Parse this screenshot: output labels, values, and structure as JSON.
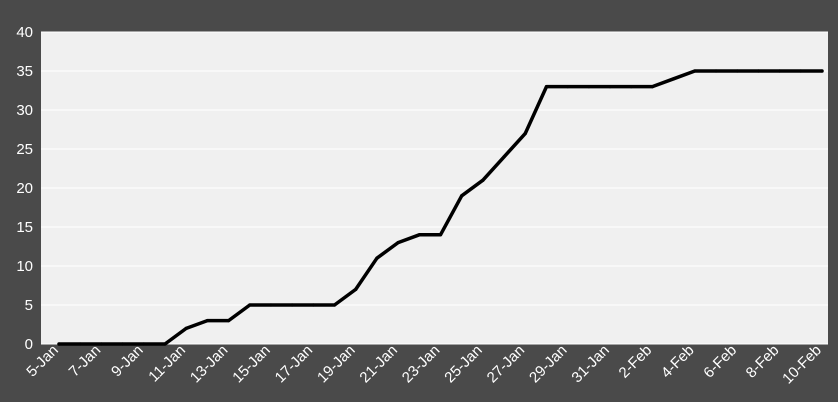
{
  "chart_data": {
    "type": "line",
    "title": "",
    "xlabel": "",
    "ylabel": "",
    "ylim": [
      0,
      40
    ],
    "yticks": [
      0,
      5,
      10,
      15,
      20,
      25,
      30,
      35,
      40
    ],
    "grid": true,
    "legend": "none",
    "x": [
      "5-Jan",
      "6-Jan",
      "7-Jan",
      "8-Jan",
      "9-Jan",
      "10-Jan",
      "11-Jan",
      "12-Jan",
      "13-Jan",
      "14-Jan",
      "15-Jan",
      "16-Jan",
      "17-Jan",
      "18-Jan",
      "19-Jan",
      "20-Jan",
      "21-Jan",
      "22-Jan",
      "23-Jan",
      "24-Jan",
      "25-Jan",
      "26-Jan",
      "27-Jan",
      "28-Jan",
      "29-Jan",
      "30-Jan",
      "31-Jan",
      "1-Feb",
      "2-Feb",
      "3-Feb",
      "4-Feb",
      "5-Feb",
      "6-Feb",
      "7-Feb",
      "8-Feb",
      "9-Feb",
      "10-Feb"
    ],
    "xtick_labels": [
      "5-Jan",
      "7-Jan",
      "9-Jan",
      "11-Jan",
      "13-Jan",
      "15-Jan",
      "17-Jan",
      "19-Jan",
      "21-Jan",
      "23-Jan",
      "25-Jan",
      "27-Jan",
      "29-Jan",
      "31-Jan",
      "2-Feb",
      "4-Feb",
      "6-Feb",
      "8-Feb",
      "10-Feb"
    ],
    "series": [
      {
        "values": [
          0,
          0,
          0,
          0,
          0,
          0,
          2,
          3,
          3,
          5,
          5,
          5,
          5,
          5,
          7,
          11,
          13,
          14,
          14,
          19,
          21,
          24,
          27,
          33,
          33,
          33,
          33,
          33,
          33,
          34,
          35,
          35,
          35,
          35,
          35,
          35,
          35
        ]
      }
    ],
    "colors": {
      "background": "#4a4a4a",
      "plot_area": "#f0f0f0",
      "gridline": "#ffffff",
      "line": "#000000",
      "tick_label": "#ffffff"
    }
  }
}
